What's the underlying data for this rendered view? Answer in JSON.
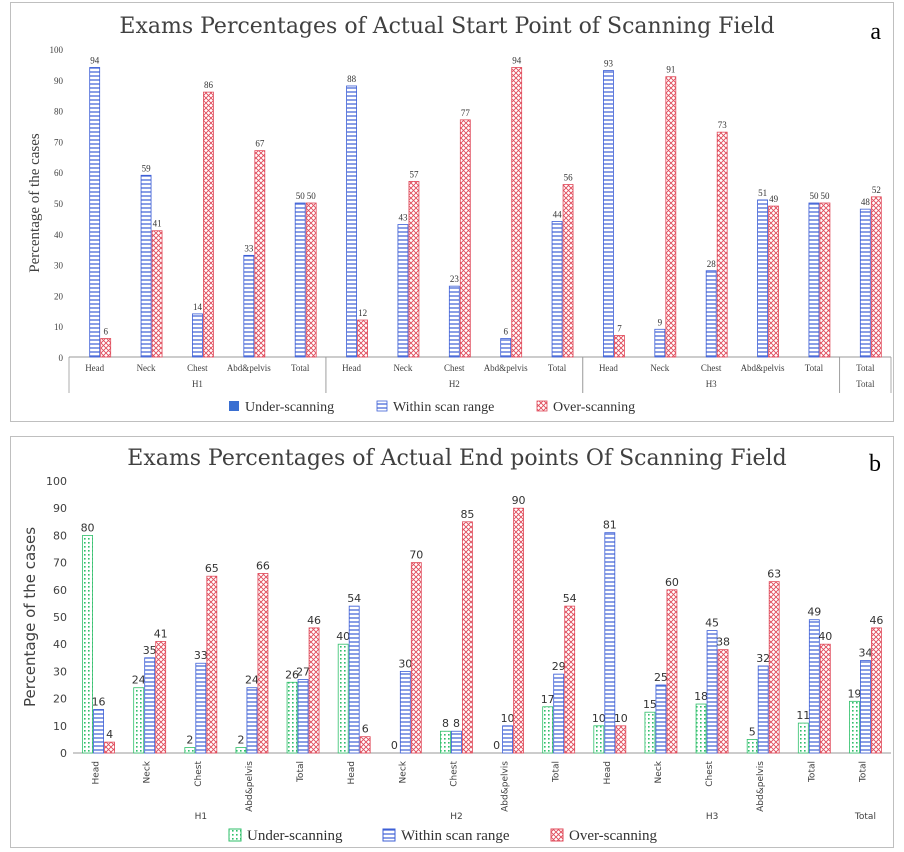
{
  "colors": {
    "under": "#3a6fd1",
    "within": "#3d5fd6",
    "over": "#e04a5a",
    "under_b": "#2fbf6a",
    "axis": "#999999",
    "grid": "#d9d9d9"
  },
  "chart_data": [
    {
      "type": "bar",
      "panel_letter": "a",
      "title": "Exams Percentages of  Actual Start Point of Scanning Field",
      "ylabel": "Percentage of the cases",
      "ylim": [
        0,
        100
      ],
      "yticks": [
        0,
        10,
        20,
        30,
        40,
        50,
        60,
        70,
        80,
        90,
        100
      ],
      "categories": [
        "Head",
        "Neck",
        "Chest",
        "Abd&pelvis",
        "Total",
        "Head",
        "Neck",
        "Chest",
        "Abd&pelvis",
        "Total",
        "Head",
        "Neck",
        "Chest",
        "Abd&pelvis",
        "Total",
        "Total"
      ],
      "groups": [
        {
          "label": "H1",
          "start": 0,
          "end": 4
        },
        {
          "label": "H2",
          "start": 5,
          "end": 9
        },
        {
          "label": "H3",
          "start": 10,
          "end": 14
        },
        {
          "label": "Total",
          "start": 15,
          "end": 15
        }
      ],
      "legend": [
        "Under-scanning",
        "Within scan range",
        "Over-scanning"
      ],
      "series": [
        {
          "name": "Under-scanning",
          "pattern": "solid",
          "values": [
            null,
            null,
            null,
            null,
            null,
            null,
            null,
            null,
            null,
            null,
            null,
            null,
            null,
            null,
            null,
            null
          ]
        },
        {
          "name": "Within scan range",
          "pattern": "hlines",
          "values": [
            94,
            59,
            14,
            33,
            50,
            88,
            43,
            23,
            6,
            44,
            93,
            9,
            28,
            51,
            50,
            48
          ]
        },
        {
          "name": "Over-scanning",
          "pattern": "cross",
          "values": [
            6,
            41,
            86,
            67,
            50,
            12,
            57,
            77,
            94,
            56,
            7,
            91,
            73,
            49,
            50,
            52
          ]
        }
      ]
    },
    {
      "type": "bar",
      "panel_letter": "b",
      "title": "Exams Percentages of Actual End points Of Scanning Field",
      "ylabel": "Percentage of the cases",
      "ylim": [
        0,
        100
      ],
      "yticks": [
        0,
        10,
        20,
        30,
        40,
        50,
        60,
        70,
        80,
        90,
        100
      ],
      "categories": [
        "Head",
        "Neck",
        "Chest",
        "Abd&pelvis",
        "Total",
        "Head",
        "Neck",
        "Chest",
        "Abd&pelvis",
        "Total",
        "Head",
        "Neck",
        "Chest",
        "Abd&pelvis",
        "Total",
        "Total"
      ],
      "groups": [
        {
          "label": "H1",
          "start": 0,
          "end": 4
        },
        {
          "label": "H2",
          "start": 5,
          "end": 9
        },
        {
          "label": "H3",
          "start": 10,
          "end": 14
        },
        {
          "label": "Total",
          "start": 15,
          "end": 15
        }
      ],
      "legend": [
        "Under-scanning",
        "Within scan range",
        "Over-scanning"
      ],
      "series": [
        {
          "name": "Under-scanning",
          "pattern": "dots",
          "values": [
            80,
            24,
            2,
            2,
            26,
            40,
            0,
            8,
            0,
            17,
            10,
            15,
            18,
            5,
            11,
            19
          ]
        },
        {
          "name": "Within scan range",
          "pattern": "hlines",
          "values": [
            16,
            35,
            33,
            24,
            27,
            54,
            30,
            8,
            10,
            29,
            81,
            25,
            45,
            32,
            49,
            34
          ]
        },
        {
          "name": "Over-scanning",
          "pattern": "cross",
          "values": [
            4,
            41,
            65,
            66,
            46,
            6,
            70,
            85,
            90,
            54,
            10,
            60,
            38,
            63,
            40,
            46
          ]
        }
      ]
    }
  ]
}
